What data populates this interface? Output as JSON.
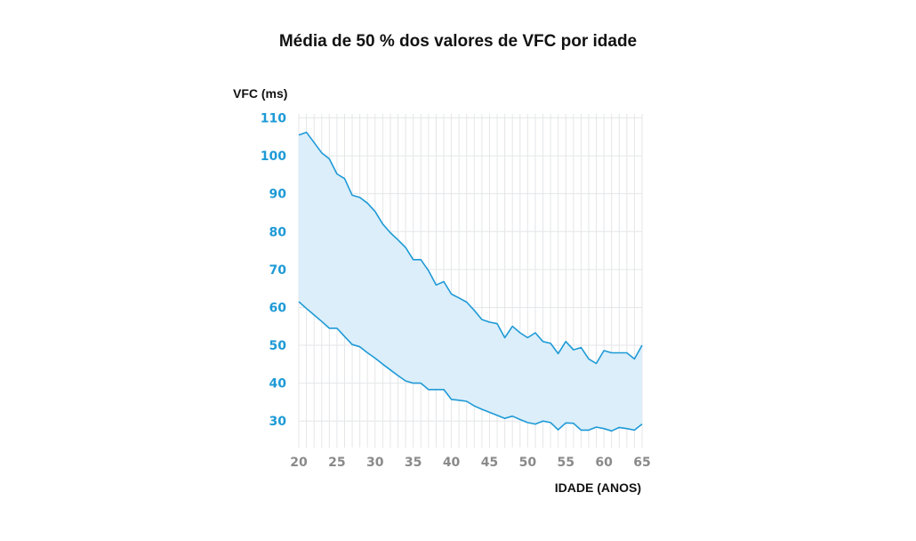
{
  "chart_data": {
    "type": "area",
    "title": "Média de 50 % dos valores de VFC por idade",
    "ylabel": "VFC (ms)",
    "xlabel": "IDADE (ANOS)",
    "xlim": [
      20,
      65
    ],
    "ylim": [
      23,
      112
    ],
    "grid": true,
    "x_ticks": [
      20,
      25,
      30,
      35,
      40,
      45,
      50,
      55,
      60,
      65
    ],
    "y_ticks": [
      30,
      40,
      50,
      60,
      70,
      80,
      90,
      100,
      110
    ],
    "x": [
      20,
      21,
      22,
      23,
      24,
      25,
      26,
      27,
      28,
      29,
      30,
      31,
      32,
      33,
      34,
      35,
      36,
      37,
      38,
      39,
      40,
      41,
      42,
      43,
      44,
      45,
      46,
      47,
      48,
      49,
      50,
      51,
      52,
      53,
      54,
      55,
      56,
      57,
      58,
      59,
      60,
      61,
      62,
      63,
      64,
      65
    ],
    "series": [
      {
        "role": "upper",
        "values": [
          105.5,
          106.2,
          103.5,
          100.8,
          99.2,
          95.2,
          94.0,
          89.6,
          89.0,
          87.5,
          85.3,
          82.0,
          79.7,
          77.8,
          75.8,
          72.6,
          72.6,
          69.7,
          65.9,
          66.8,
          63.5,
          62.5,
          61.4,
          59.2,
          56.8,
          56.1,
          55.7,
          52.0,
          55.0,
          53.3,
          52.0,
          53.3,
          51.0,
          50.5,
          47.8,
          51.0,
          48.8,
          49.4,
          46.4,
          45.2,
          48.6,
          48.0,
          48.0,
          48.0,
          46.4,
          50.0
        ],
        "color": "#1e9ad6"
      },
      {
        "role": "lower",
        "values": [
          61.5,
          59.7,
          58.0,
          56.3,
          54.5,
          54.5,
          52.3,
          50.2,
          49.6,
          48.0,
          46.6,
          45.0,
          43.5,
          42.0,
          40.6,
          40.0,
          40.0,
          38.3,
          38.3,
          38.3,
          35.7,
          35.5,
          35.2,
          34.0,
          33.1,
          32.3,
          31.5,
          30.7,
          31.3,
          30.4,
          29.6,
          29.2,
          30.0,
          29.6,
          27.7,
          29.5,
          29.4,
          27.6,
          27.6,
          28.4,
          28.0,
          27.4,
          28.3,
          28.0,
          27.6,
          29.2
        ],
        "color": "#1e9ad6"
      }
    ],
    "fill_color": "#dbeefa",
    "line_color": "#1e9ad6"
  }
}
